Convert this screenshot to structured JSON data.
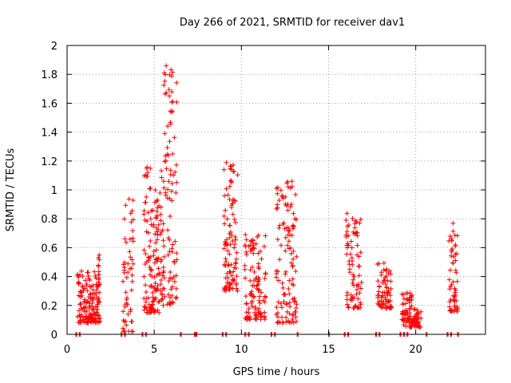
{
  "chart_data": {
    "type": "scatter",
    "title": "Day 266 of 2021, SRMTID for receiver dav1",
    "xlabel": "GPS time / hours",
    "ylabel": "SRMTID / TECUs",
    "xlim": [
      0,
      24
    ],
    "ylim": [
      0,
      2
    ],
    "xticks": [
      0,
      5,
      10,
      15,
      20
    ],
    "xtick_labels": [
      "0",
      "5",
      "10",
      "15",
      "20"
    ],
    "yticks": [
      0,
      0.2,
      0.4,
      0.6,
      0.8,
      1,
      1.2,
      1.4,
      1.6,
      1.8,
      2
    ],
    "ytick_labels": [
      "0",
      "0.2",
      "0.4",
      "0.6",
      "0.8",
      "1",
      "1.2",
      "1.4",
      "1.6",
      "1.8",
      "2"
    ],
    "grid": true,
    "marker": "+",
    "color": "#ff0000",
    "series": [
      {
        "name": "SRMTID",
        "clusters": [
          {
            "x": [
              0.6,
              1.9
            ],
            "y": [
              0.08,
              0.44
            ],
            "n": 150
          },
          {
            "x": 1.82,
            "y": [
              0.22,
              0.57
            ],
            "n": 20
          },
          {
            "x": [
              3.2,
              3.8
            ],
            "y": [
              0.02,
              0.97
            ],
            "n": 55
          },
          {
            "x": [
              4.4,
              4.8
            ],
            "y": [
              0.15,
              1.2
            ],
            "n": 55
          },
          {
            "x": [
              4.8,
              5.4
            ],
            "y": [
              0.15,
              1.0
            ],
            "n": 80
          },
          {
            "x": [
              5.4,
              6.3
            ],
            "y": [
              0.2,
              1.87
            ],
            "n": 110
          },
          {
            "x": [
              9.0,
              9.8
            ],
            "y": [
              0.3,
              1.23
            ],
            "n": 100
          },
          {
            "x": [
              10.2,
              11.4
            ],
            "y": [
              0.1,
              0.7
            ],
            "n": 110
          },
          {
            "x": [
              12.0,
              13.2
            ],
            "y": [
              0.08,
              1.08
            ],
            "n": 120
          },
          {
            "x": [
              16.0,
              16.9
            ],
            "y": [
              0.18,
              0.84
            ],
            "n": 80
          },
          {
            "x": [
              17.8,
              18.6
            ],
            "y": [
              0.18,
              0.5
            ],
            "n": 70
          },
          {
            "x": [
              19.2,
              19.8
            ],
            "y": [
              0.05,
              0.3
            ],
            "n": 60
          },
          {
            "x": [
              19.8,
              20.3
            ],
            "y": [
              0.05,
              0.18
            ],
            "n": 40
          },
          {
            "x": [
              21.9,
              22.4
            ],
            "y": [
              0.16,
              0.78
            ],
            "n": 60
          }
        ],
        "zero_line_x": [
          0.5,
          0.7,
          3.1,
          3.3,
          4.3,
          4.5,
          6.5,
          7.3,
          7.4,
          8.9,
          9.1,
          10.2,
          10.4,
          11.7,
          11.9,
          13.2,
          15.0,
          15.9,
          16.1,
          17.7,
          17.9,
          19.1,
          19.3,
          19.5,
          20.6,
          21.8,
          22.0,
          22.4
        ]
      }
    ]
  }
}
